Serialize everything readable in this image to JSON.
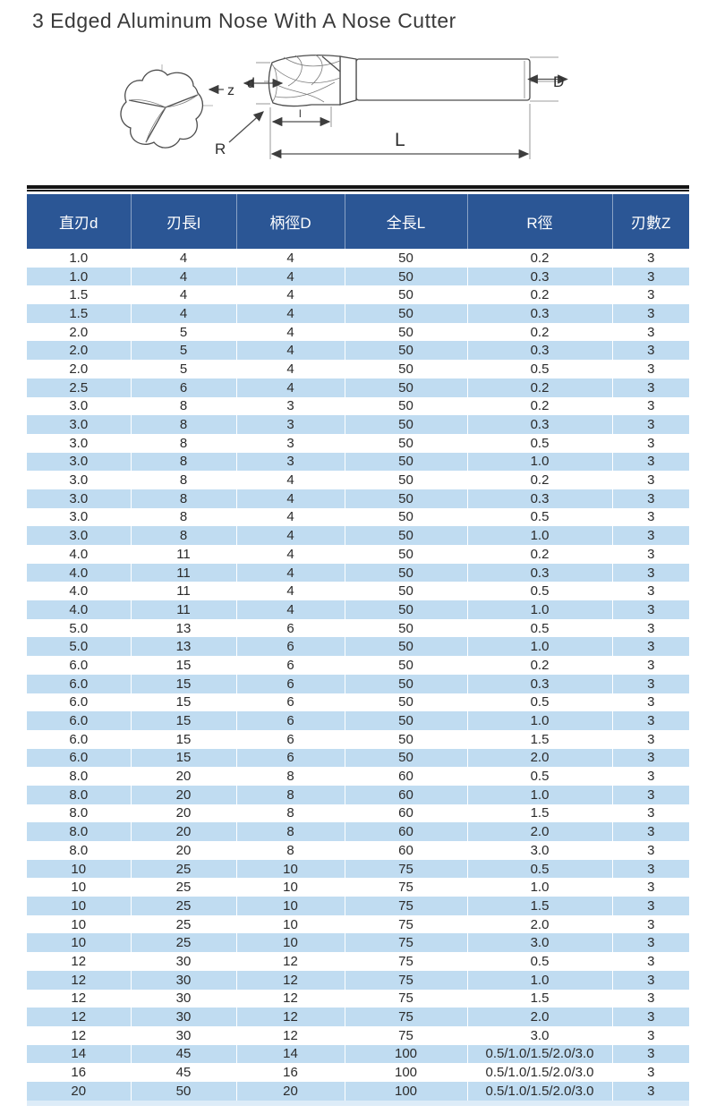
{
  "page": {
    "title": "3 Edged Aluminum Nose With A Nose Cutter"
  },
  "diagram": {
    "labels": {
      "z": "z",
      "d": "d",
      "D": "D",
      "l": "l",
      "L": "L",
      "R": "R"
    }
  },
  "table": {
    "colors": {
      "header_bg": "#2b5695",
      "header_text": "#ffffff",
      "stripe_bg": "#c0dcf1",
      "cell_text": "#2b2b2b"
    },
    "columns": [
      "直刃d",
      "刃長l",
      "柄徑D",
      "全長L",
      "R徑",
      "刃數Z"
    ],
    "rows": [
      [
        "1.0",
        "4",
        "4",
        "50",
        "0.2",
        "3"
      ],
      [
        "1.0",
        "4",
        "4",
        "50",
        "0.3",
        "3"
      ],
      [
        "1.5",
        "4",
        "4",
        "50",
        "0.2",
        "3"
      ],
      [
        "1.5",
        "4",
        "4",
        "50",
        "0.3",
        "3"
      ],
      [
        "2.0",
        "5",
        "4",
        "50",
        "0.2",
        "3"
      ],
      [
        "2.0",
        "5",
        "4",
        "50",
        "0.3",
        "3"
      ],
      [
        "2.0",
        "5",
        "4",
        "50",
        "0.5",
        "3"
      ],
      [
        "2.5",
        "6",
        "4",
        "50",
        "0.2",
        "3"
      ],
      [
        "3.0",
        "8",
        "3",
        "50",
        "0.2",
        "3"
      ],
      [
        "3.0",
        "8",
        "3",
        "50",
        "0.3",
        "3"
      ],
      [
        "3.0",
        "8",
        "3",
        "50",
        "0.5",
        "3"
      ],
      [
        "3.0",
        "8",
        "3",
        "50",
        "1.0",
        "3"
      ],
      [
        "3.0",
        "8",
        "4",
        "50",
        "0.2",
        "3"
      ],
      [
        "3.0",
        "8",
        "4",
        "50",
        "0.3",
        "3"
      ],
      [
        "3.0",
        "8",
        "4",
        "50",
        "0.5",
        "3"
      ],
      [
        "3.0",
        "8",
        "4",
        "50",
        "1.0",
        "3"
      ],
      [
        "4.0",
        "11",
        "4",
        "50",
        "0.2",
        "3"
      ],
      [
        "4.0",
        "11",
        "4",
        "50",
        "0.3",
        "3"
      ],
      [
        "4.0",
        "11",
        "4",
        "50",
        "0.5",
        "3"
      ],
      [
        "4.0",
        "11",
        "4",
        "50",
        "1.0",
        "3"
      ],
      [
        "5.0",
        "13",
        "6",
        "50",
        "0.5",
        "3"
      ],
      [
        "5.0",
        "13",
        "6",
        "50",
        "1.0",
        "3"
      ],
      [
        "6.0",
        "15",
        "6",
        "50",
        "0.2",
        "3"
      ],
      [
        "6.0",
        "15",
        "6",
        "50",
        "0.3",
        "3"
      ],
      [
        "6.0",
        "15",
        "6",
        "50",
        "0.5",
        "3"
      ],
      [
        "6.0",
        "15",
        "6",
        "50",
        "1.0",
        "3"
      ],
      [
        "6.0",
        "15",
        "6",
        "50",
        "1.5",
        "3"
      ],
      [
        "6.0",
        "15",
        "6",
        "50",
        "2.0",
        "3"
      ],
      [
        "8.0",
        "20",
        "8",
        "60",
        "0.5",
        "3"
      ],
      [
        "8.0",
        "20",
        "8",
        "60",
        "1.0",
        "3"
      ],
      [
        "8.0",
        "20",
        "8",
        "60",
        "1.5",
        "3"
      ],
      [
        "8.0",
        "20",
        "8",
        "60",
        "2.0",
        "3"
      ],
      [
        "8.0",
        "20",
        "8",
        "60",
        "3.0",
        "3"
      ],
      [
        "10",
        "25",
        "10",
        "75",
        "0.5",
        "3"
      ],
      [
        "10",
        "25",
        "10",
        "75",
        "1.0",
        "3"
      ],
      [
        "10",
        "25",
        "10",
        "75",
        "1.5",
        "3"
      ],
      [
        "10",
        "25",
        "10",
        "75",
        "2.0",
        "3"
      ],
      [
        "10",
        "25",
        "10",
        "75",
        "3.0",
        "3"
      ],
      [
        "12",
        "30",
        "12",
        "75",
        "0.5",
        "3"
      ],
      [
        "12",
        "30",
        "12",
        "75",
        "1.0",
        "3"
      ],
      [
        "12",
        "30",
        "12",
        "75",
        "1.5",
        "3"
      ],
      [
        "12",
        "30",
        "12",
        "75",
        "2.0",
        "3"
      ],
      [
        "12",
        "30",
        "12",
        "75",
        "3.0",
        "3"
      ],
      [
        "14",
        "45",
        "14",
        "100",
        "0.5/1.0/1.5/2.0/3.0",
        "3"
      ],
      [
        "16",
        "45",
        "16",
        "100",
        "0.5/1.0/1.5/2.0/3.0",
        "3"
      ],
      [
        "20",
        "50",
        "20",
        "100",
        "0.5/1.0/1.5/2.0/3.0",
        "3"
      ]
    ]
  }
}
